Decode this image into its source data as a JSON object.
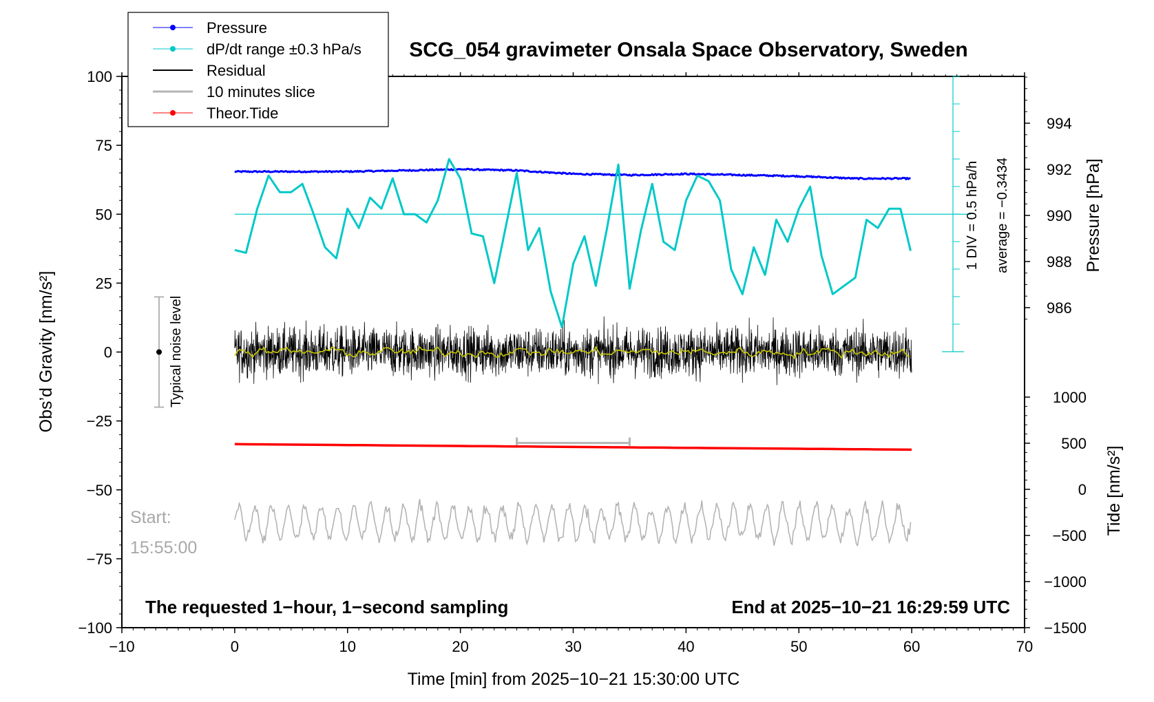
{
  "chart_data": {
    "type": "line",
    "title": "SCG_054 gravimeter Onsala Space Observatory, Sweden",
    "xlabel": "Time [min] from 2025−10−21 15:30:00 UTC",
    "ylabel_left": "Obs’d Gravity [nm/s²]",
    "ylabel_pressure": "Pressure [hPa]",
    "ylabel_tide": "Tide [nm/s²]",
    "xlim": [
      -10,
      70
    ],
    "ylim": [
      -100,
      100
    ],
    "pressure_range": [
      984,
      996
    ],
    "tide_range": [
      -1500,
      1000
    ],
    "x_ticks": [
      "−10",
      "0",
      "10",
      "20",
      "30",
      "40",
      "50",
      "60",
      "70"
    ],
    "y_ticks": [
      "100",
      "75",
      "50",
      "25",
      "0",
      "−25",
      "−50",
      "−75",
      "−100"
    ],
    "pressure_ticks": [
      "994",
      "992",
      "990",
      "988",
      "986"
    ],
    "tide_ticks": [
      "1000",
      "500",
      "0",
      "−500",
      "−1000",
      "−1500"
    ],
    "legend": [
      {
        "label": "Pressure",
        "color": "#0000ff"
      },
      {
        "label": "dP/dt range ±0.3 hPa/s",
        "color": "#00c8c8"
      },
      {
        "label": "Residual",
        "color": "#000000"
      },
      {
        "label": "10 minutes slice",
        "color": "#b4b4b4"
      },
      {
        "label": "Theor.Tide",
        "color": "#ff0000"
      }
    ],
    "dpdt_scale_labels": [
      "1 DIV = 0.5 hPa/h",
      "average = −0.3434"
    ],
    "noise_label": "Typical noise level",
    "slice_start_labels": [
      "Start:",
      "15:55:00"
    ],
    "bottom_left_note": "The requested 1−hour, 1−second sampling",
    "bottom_right_note": "End at 2025−10−21 16:29:59 UTC",
    "series": [
      {
        "name": "Pressure",
        "axis": "pressure",
        "color": "#0000ff",
        "x": [
          0,
          10,
          20,
          25,
          30,
          35,
          40,
          45,
          50,
          55,
          60
        ],
        "values": [
          991.9,
          991.9,
          992.0,
          991.95,
          991.8,
          991.75,
          991.8,
          991.75,
          991.7,
          991.6,
          991.6
        ]
      },
      {
        "name": "dP/dt range ±0.3 hPa/s",
        "axis": "gravity",
        "color": "#00c8c8",
        "x": [
          0,
          1,
          2,
          3,
          4,
          5,
          6,
          7,
          8,
          9,
          10,
          11,
          12,
          13,
          14,
          15,
          16,
          17,
          18,
          19,
          20,
          21,
          22,
          23,
          24,
          25,
          26,
          27,
          28,
          29,
          30,
          31,
          32,
          33,
          34,
          35,
          36,
          37,
          38,
          39,
          40,
          41,
          42,
          43,
          44,
          45,
          46,
          47,
          48,
          49,
          50,
          51,
          52,
          53,
          54,
          55,
          56,
          57,
          58,
          59,
          60
        ],
        "values": [
          37,
          36,
          52,
          64,
          58,
          58,
          61,
          50,
          38,
          34,
          52,
          45,
          56,
          52,
          63,
          50,
          50,
          47,
          55,
          70,
          63,
          43,
          42,
          25,
          45,
          65,
          37,
          45,
          22,
          9,
          32,
          42,
          24,
          45,
          68,
          23,
          44,
          61,
          40,
          37,
          55,
          64,
          62,
          55,
          30,
          21,
          38,
          28,
          48,
          40,
          52,
          60,
          35,
          21,
          24,
          27,
          48,
          45,
          52,
          52,
          35
        ]
      },
      {
        "name": "Residual",
        "axis": "gravity",
        "color": "#000000",
        "x": [
          0,
          60
        ],
        "values": [
          0,
          0
        ],
        "amplitude": 9
      },
      {
        "name": "10 minutes slice",
        "axis": "gravity",
        "color": "#b4b4b4",
        "x": [
          0,
          60
        ],
        "values": [
          -62,
          -62
        ],
        "amplitude": 6,
        "slice_x": [
          25,
          35
        ]
      },
      {
        "name": "Theor.Tide",
        "axis": "tide",
        "color": "#ff0000",
        "x": [
          0,
          10,
          20,
          30,
          40,
          50,
          60
        ],
        "values": [
          490,
          480,
          470,
          460,
          450,
          440,
          430
        ]
      }
    ]
  }
}
